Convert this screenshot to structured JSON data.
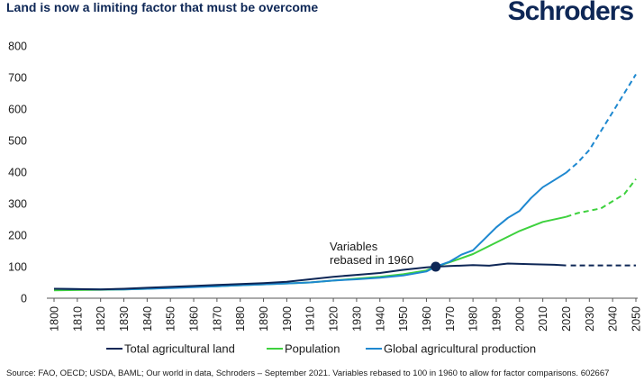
{
  "header": {
    "title": "Land is now a limiting factor that must be overcome",
    "brand": "Schroders"
  },
  "footer": {
    "source": "Source: FAO, OECD; USDA, BAML; Our world in data, Schroders – September 2021. Variables rebased to 100 in 1960 to allow for factor comparisons. 602667"
  },
  "chart_data": {
    "type": "line",
    "title": "Land is now a limiting factor that must be overcome",
    "xlabel": "",
    "ylabel": "",
    "xlim": [
      1800,
      2050
    ],
    "ylim": [
      0,
      800
    ],
    "x_ticks": [
      1800,
      1810,
      1820,
      1830,
      1840,
      1850,
      1860,
      1870,
      1880,
      1890,
      1900,
      1910,
      1920,
      1930,
      1940,
      1950,
      1960,
      1970,
      1980,
      1990,
      2000,
      2010,
      2020,
      2030,
      2040,
      2050
    ],
    "y_ticks": [
      0,
      100,
      200,
      300,
      400,
      500,
      600,
      700,
      800
    ],
    "grid": false,
    "legend_position": "bottom",
    "annotation": {
      "lines": [
        "Variables",
        "rebased in 1960"
      ],
      "point": [
        1964,
        100
      ]
    },
    "series": [
      {
        "name": "Total agricultural land",
        "color": "#0e2756",
        "actual": [
          [
            1800,
            30
          ],
          [
            1810,
            29
          ],
          [
            1820,
            28
          ],
          [
            1830,
            30
          ],
          [
            1840,
            33
          ],
          [
            1850,
            36
          ],
          [
            1860,
            39
          ],
          [
            1870,
            42
          ],
          [
            1880,
            45
          ],
          [
            1890,
            48
          ],
          [
            1900,
            52
          ],
          [
            1910,
            60
          ],
          [
            1920,
            68
          ],
          [
            1930,
            74
          ],
          [
            1940,
            80
          ],
          [
            1950,
            90
          ],
          [
            1960,
            98
          ],
          [
            1964,
            100
          ],
          [
            1970,
            102
          ],
          [
            1980,
            105
          ],
          [
            1987,
            103
          ],
          [
            1995,
            110
          ],
          [
            2005,
            108
          ],
          [
            2015,
            106
          ],
          [
            2020,
            104
          ]
        ],
        "projected": [
          [
            2022,
            104
          ],
          [
            2050,
            104
          ]
        ]
      },
      {
        "name": "Population",
        "color": "#3ed13e",
        "actual": [
          [
            1800,
            25
          ],
          [
            1810,
            26
          ],
          [
            1820,
            27
          ],
          [
            1830,
            28
          ],
          [
            1840,
            30
          ],
          [
            1850,
            33
          ],
          [
            1860,
            36
          ],
          [
            1870,
            38
          ],
          [
            1880,
            41
          ],
          [
            1890,
            44
          ],
          [
            1900,
            47
          ],
          [
            1910,
            50
          ],
          [
            1920,
            56
          ],
          [
            1930,
            62
          ],
          [
            1940,
            68
          ],
          [
            1950,
            76
          ],
          [
            1960,
            88
          ],
          [
            1964,
            100
          ],
          [
            1970,
            114
          ],
          [
            1980,
            140
          ],
          [
            1990,
            177
          ],
          [
            2000,
            213
          ],
          [
            2010,
            242
          ],
          [
            2020,
            258
          ]
        ],
        "projected": [
          [
            2020,
            258
          ],
          [
            2025,
            270
          ],
          [
            2035,
            285
          ],
          [
            2045,
            330
          ],
          [
            2050,
            378
          ]
        ]
      },
      {
        "name": "Global agricultural production",
        "color": "#1e88d0",
        "actual": [
          [
            1800,
            30
          ],
          [
            1810,
            29
          ],
          [
            1820,
            28
          ],
          [
            1830,
            28
          ],
          [
            1840,
            30
          ],
          [
            1850,
            32
          ],
          [
            1860,
            35
          ],
          [
            1870,
            38
          ],
          [
            1880,
            41
          ],
          [
            1890,
            44
          ],
          [
            1900,
            47
          ],
          [
            1910,
            50
          ],
          [
            1920,
            56
          ],
          [
            1930,
            60
          ],
          [
            1940,
            65
          ],
          [
            1950,
            72
          ],
          [
            1960,
            85
          ],
          [
            1964,
            100
          ],
          [
            1970,
            116
          ],
          [
            1975,
            138
          ],
          [
            1980,
            152
          ],
          [
            1985,
            188
          ],
          [
            1990,
            225
          ],
          [
            1995,
            255
          ],
          [
            2000,
            277
          ],
          [
            2005,
            318
          ],
          [
            2010,
            352
          ],
          [
            2015,
            375
          ],
          [
            2020,
            398
          ]
        ],
        "projected": [
          [
            2020,
            398
          ],
          [
            2025,
            430
          ],
          [
            2030,
            470
          ],
          [
            2035,
            530
          ],
          [
            2040,
            590
          ],
          [
            2045,
            650
          ],
          [
            2050,
            710
          ]
        ]
      }
    ]
  }
}
